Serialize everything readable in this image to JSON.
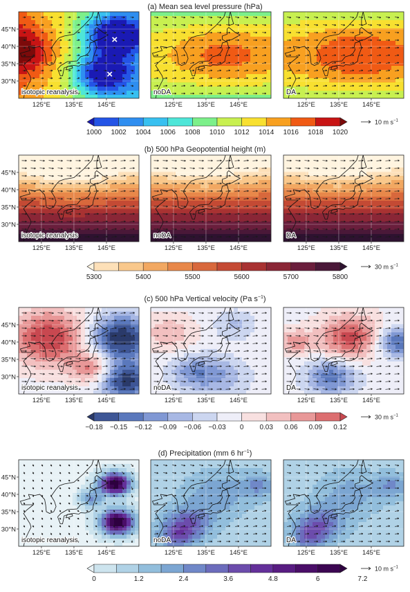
{
  "chart_data": [
    {
      "type": "heatmap",
      "title": "(a) Mean sea level pressure (hPa)",
      "panels": [
        "isotopic reanalysis",
        "noDA",
        "DA"
      ],
      "x_ticks": [
        "125°E",
        "135°E",
        "145°E"
      ],
      "y_ticks": [
        "30°N",
        "35°N",
        "40°N",
        "45°N"
      ],
      "colorbar": {
        "ticks": [
          "1000",
          "1002",
          "1004",
          "1006",
          "1008",
          "1010",
          "1012",
          "1014",
          "1016",
          "1018",
          "1020"
        ],
        "colors": [
          "#1a1ab4",
          "#2454e6",
          "#2f8ef0",
          "#38c0f0",
          "#4ee6d8",
          "#7cf08a",
          "#c8f050",
          "#f8e030",
          "#f8a020",
          "#f05a14",
          "#c81414",
          "#7c0a0a"
        ]
      },
      "vector_scale": "10 m s",
      "vector_unit_exp": "−1",
      "markers": [
        {
          "symbol": "×",
          "lon": 147.5,
          "lat": 42
        },
        {
          "symbol": "×",
          "lon": 146,
          "lat": 32
        }
      ]
    },
    {
      "type": "heatmap",
      "title": "(b) 500 hPa Geopotential height (m)",
      "panels": [
        "isotopic reanalysis",
        "noDA",
        "DA"
      ],
      "x_ticks": [
        "125°E",
        "135°E",
        "145°E"
      ],
      "y_ticks": [
        "30°N",
        "35°N",
        "40°N",
        "45°N"
      ],
      "colorbar": {
        "ticks": [
          "5300",
          "",
          "5400",
          "",
          "5500",
          "",
          "5600",
          "",
          "5700",
          "",
          "5800"
        ],
        "colors": [
          "#fff4e0",
          "#fde0b8",
          "#f9c88c",
          "#f2a862",
          "#e8884a",
          "#d8683c",
          "#c44a34",
          "#a83232",
          "#8a2636",
          "#6a1e3c",
          "#4a1838",
          "#2e1230"
        ]
      },
      "vector_scale": "30 m s",
      "vector_unit_exp": "−1"
    },
    {
      "type": "heatmap",
      "title": "(c) 500 hPa Vertical velocity (Pa s",
      "title_exp": "−1",
      "title_close": ")",
      "panels": [
        "isotopic reanalysis",
        "noDA",
        "DA"
      ],
      "x_ticks": [
        "125°E",
        "135°E",
        "145°E"
      ],
      "y_ticks": [
        "30°N",
        "35°N",
        "40°N",
        "45°N"
      ],
      "colorbar": {
        "ticks": [
          "−0.18",
          "−0.15",
          "−0.12",
          "−0.09",
          "−0.06",
          "−0.03",
          "0",
          "0.03",
          "0.06",
          "0.09",
          "0.12"
        ],
        "colors": [
          "#2a3a6a",
          "#3e5696",
          "#5a78bc",
          "#8098d4",
          "#a8b8e4",
          "#ccd6f0",
          "#eeeef8",
          "#f8e0e0",
          "#f2c0c0",
          "#e89898",
          "#dc6e70",
          "#c84850"
        ]
      },
      "vector_scale": "30 m s",
      "vector_unit_exp": "−1"
    },
    {
      "type": "heatmap",
      "title": "(d) Precipitation (mm 6 hr",
      "title_exp": "−1",
      "title_close": ")",
      "panels": [
        "isotopic reanalysis",
        "noDA",
        "DA"
      ],
      "x_ticks": [
        "125°E",
        "135°E",
        "145°E"
      ],
      "y_ticks": [
        "30°N",
        "35°N",
        "40°N",
        "45°N"
      ],
      "colorbar": {
        "ticks": [
          "0",
          "",
          "1.2",
          "",
          "2.4",
          "",
          "3.6",
          "",
          "4.8",
          "",
          "6",
          "",
          "7.2"
        ],
        "colors": [
          "#e8f2f6",
          "#cde4ee",
          "#b0d2e6",
          "#92bedc",
          "#7ca6d2",
          "#7088c8",
          "#6c6cbc",
          "#6c4cac",
          "#64309a",
          "#581c82",
          "#4a0e68",
          "#3c0652",
          "#2e0040"
        ]
      },
      "vector_scale": "10 m s",
      "vector_unit_exp": "−1"
    }
  ]
}
